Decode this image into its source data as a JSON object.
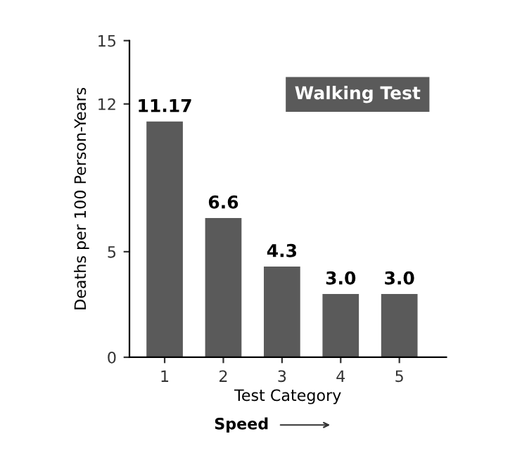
{
  "chart_data": {
    "type": "bar",
    "categories": [
      "1",
      "2",
      "3",
      "4",
      "5"
    ],
    "values": [
      11.17,
      6.6,
      4.3,
      3.0,
      3.0
    ],
    "value_labels": [
      "11.17",
      "6.6",
      "4.3",
      "3.0",
      "3.0"
    ],
    "color": "#5a5a5a",
    "xlabel": "Test Category",
    "ylabel": "Deaths per 100 Person-Years",
    "ylim": [
      0,
      15
    ],
    "yticks": [
      0,
      5,
      12,
      15
    ],
    "annotations": [
      "Walking Test",
      "Speed"
    ],
    "grid": false,
    "legend": false
  }
}
